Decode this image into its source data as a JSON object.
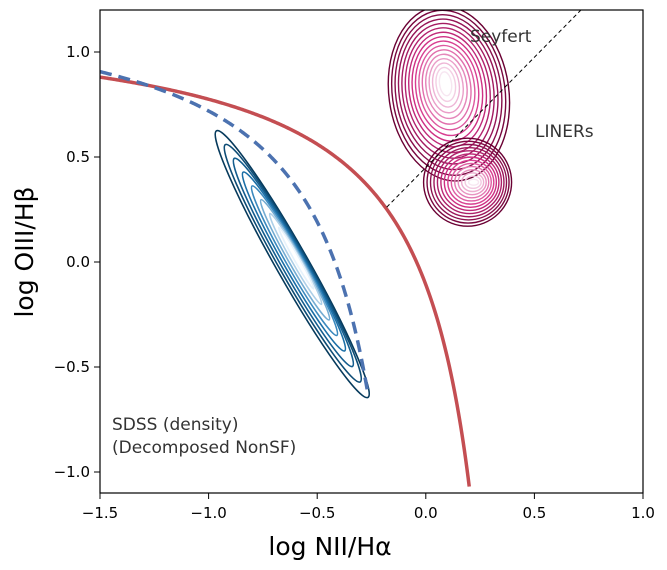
{
  "chart_data": {
    "type": "line",
    "xlabel": "log NII/Hα",
    "ylabel": "log OIII/Hβ",
    "xlim": [
      -1.5,
      1.0
    ],
    "ylim": [
      -1.1,
      1.2
    ],
    "xticks": [
      -1.5,
      -1.0,
      -0.5,
      0.0,
      0.5,
      1.0
    ],
    "xtick_labels": [
      "−1.5",
      "−1.0",
      "−0.5",
      "0.0",
      "0.5",
      "1.0"
    ],
    "yticks": [
      -1.0,
      -0.5,
      0.0,
      0.5,
      1.0
    ],
    "ytick_labels": [
      "−1.0",
      "−0.5",
      "0.0",
      "0.5",
      "1.0"
    ],
    "grid": false,
    "annotations": {
      "seyfert": "Seyfert",
      "liners": "LINERs",
      "density_line1": "SDSS (density)",
      "density_line2": "(Decomposed NonSF)"
    },
    "colors": {
      "kewley": "#c44e52",
      "kauffmann": "#4c72b0",
      "schawinski": "#000000",
      "blue_contours": "#0a4d7a",
      "pink_contours": "#c0106a"
    },
    "series": [
      {
        "name": "Kewley 2001 maximum starburst line",
        "style": "solid",
        "formula": "0.61/(x-0.47)+1.19",
        "x_range": [
          -1.5,
          0.2
        ]
      },
      {
        "name": "Kauffmann 2003 line",
        "style": "dashed",
        "formula": "0.61/(x-0.05)+1.3",
        "x_range": [
          -1.5,
          -0.27
        ]
      },
      {
        "name": "Schawinski 2007 Seyfert-LINER line",
        "style": "dotted-thin",
        "formula": "1.05*x+0.45",
        "x_range": [
          -0.18,
          0.75
        ]
      }
    ],
    "density_components": [
      {
        "name": "SDSS NonSF density (blue)",
        "centerline": [
          [
            -0.95,
            0.6
          ],
          [
            -0.75,
            0.42
          ],
          [
            -0.6,
            0.22
          ],
          [
            -0.5,
            0.0
          ],
          [
            -0.42,
            -0.2
          ],
          [
            -0.35,
            -0.4
          ],
          [
            -0.28,
            -0.62
          ]
        ],
        "levels": 8
      },
      {
        "name": "Seyfert density (pink)",
        "center": [
          0.1,
          0.85
        ],
        "levels": 16
      },
      {
        "name": "LINER density (pink)",
        "center": [
          0.22,
          0.38
        ],
        "levels": 14
      }
    ]
  }
}
